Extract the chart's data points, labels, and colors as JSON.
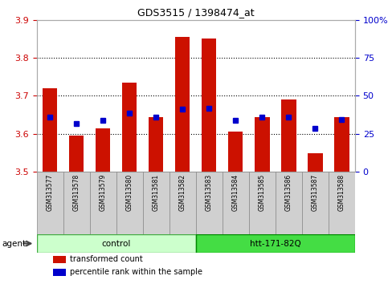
{
  "title": "GDS3515 / 1398474_at",
  "samples": [
    "GSM313577",
    "GSM313578",
    "GSM313579",
    "GSM313580",
    "GSM313581",
    "GSM313582",
    "GSM313583",
    "GSM313584",
    "GSM313585",
    "GSM313586",
    "GSM313587",
    "GSM313588"
  ],
  "bar_values": [
    3.72,
    3.595,
    3.615,
    3.735,
    3.645,
    3.855,
    3.852,
    3.605,
    3.645,
    3.69,
    3.548,
    3.645
  ],
  "percentile_values": [
    3.645,
    3.628,
    3.635,
    3.655,
    3.645,
    3.665,
    3.668,
    3.636,
    3.645,
    3.645,
    3.615,
    3.638
  ],
  "ymin": 3.5,
  "ymax": 3.9,
  "yticks": [
    3.5,
    3.6,
    3.7,
    3.8,
    3.9
  ],
  "right_yticks": [
    0,
    25,
    50,
    75,
    100
  ],
  "right_ytick_labels": [
    "0",
    "25",
    "50",
    "75",
    "100%"
  ],
  "bar_color": "#cc1100",
  "dot_color": "#0000cc",
  "bar_bottom": 3.5,
  "groups": [
    {
      "label": "control",
      "start": 0,
      "end": 5,
      "color": "#ccffcc",
      "border_color": "#44aa44"
    },
    {
      "label": "htt-171-82Q",
      "start": 6,
      "end": 11,
      "color": "#44dd44",
      "border_color": "#008800"
    }
  ],
  "agent_label": "agent",
  "legend_items": [
    {
      "color": "#cc1100",
      "label": "transformed count"
    },
    {
      "color": "#0000cc",
      "label": "percentile rank within the sample"
    }
  ],
  "left_axis_color": "#cc0000",
  "right_axis_color": "#0000cc",
  "sample_box_color": "#d0d0d0",
  "sample_box_border": "#888888"
}
